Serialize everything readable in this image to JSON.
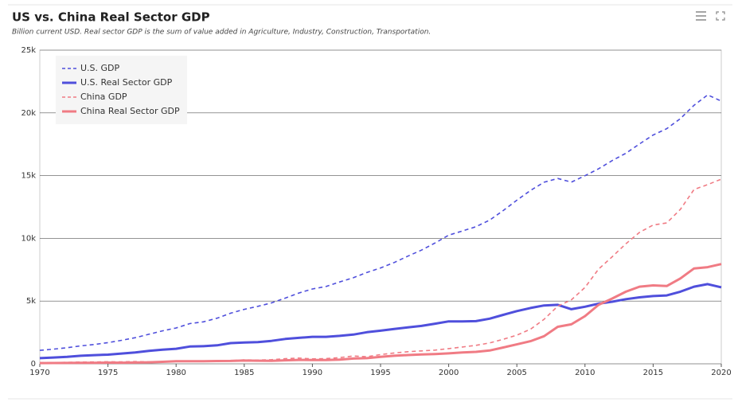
{
  "chart_data": {
    "type": "line",
    "title": "US vs. China Real Sector GDP",
    "subtitle": "Billion current USD. Real sector GDP is the sum of value added in Agriculture, Industry, Construction, Transportation.",
    "x": [
      1970,
      1971,
      1972,
      1973,
      1974,
      1975,
      1976,
      1977,
      1978,
      1979,
      1980,
      1981,
      1982,
      1983,
      1984,
      1985,
      1986,
      1987,
      1988,
      1989,
      1990,
      1991,
      1992,
      1993,
      1994,
      1995,
      1996,
      1997,
      1998,
      1999,
      2000,
      2001,
      2002,
      2003,
      2004,
      2005,
      2006,
      2007,
      2008,
      2009,
      2010,
      2011,
      2012,
      2013,
      2014,
      2015,
      2016,
      2017,
      2018,
      2019,
      2020
    ],
    "series": [
      {
        "name": "U.S. GDP",
        "color": "#4f4fdc",
        "dashed": true,
        "width": 1.6,
        "values": [
          1073,
          1165,
          1280,
          1425,
          1545,
          1685,
          1873,
          2082,
          2352,
          2627,
          2857,
          3207,
          3343,
          3634,
          4037,
          4339,
          4580,
          4855,
          5236,
          5641,
          5963,
          6158,
          6520,
          6858,
          7287,
          7639,
          8073,
          8577,
          9062,
          9631,
          10251,
          10582,
          10929,
          11456,
          12217,
          13039,
          13815,
          14474,
          14769,
          14478,
          14992,
          15543,
          16197,
          16785,
          17527,
          18238,
          18745,
          19543,
          20612,
          21433,
          20937
        ]
      },
      {
        "name": "U.S. Real Sector GDP",
        "color": "#4f4fdc",
        "dashed": false,
        "width": 3,
        "values": [
          450,
          500,
          560,
          640,
          690,
          730,
          820,
          910,
          1030,
          1130,
          1200,
          1380,
          1400,
          1470,
          1650,
          1700,
          1730,
          1830,
          1980,
          2070,
          2150,
          2150,
          2230,
          2330,
          2520,
          2640,
          2770,
          2900,
          3020,
          3200,
          3380,
          3380,
          3400,
          3600,
          3900,
          4200,
          4450,
          4650,
          4700,
          4350,
          4550,
          4800,
          4950,
          5150,
          5300,
          5400,
          5450,
          5750,
          6150,
          6350,
          6100
        ]
      },
      {
        "name": "China GDP",
        "color": "#f07b84",
        "dashed": true,
        "width": 1.6,
        "values": [
          92,
          100,
          114,
          139,
          144,
          163,
          154,
          175,
          150,
          178,
          191,
          196,
          205,
          231,
          260,
          309,
          301,
          327,
          408,
          457,
          395,
          415,
          495,
          623,
          564,
          734,
          864,
          962,
          1029,
          1094,
          1211,
          1339,
          1471,
          1660,
          1955,
          2286,
          2752,
          3550,
          4594,
          5102,
          6087,
          7552,
          8532,
          9570,
          10476,
          11062,
          11233,
          12310,
          13895,
          14280,
          14723
        ]
      },
      {
        "name": "China Real Sector GDP",
        "color": "#f07b84",
        "dashed": false,
        "width": 3,
        "values": [
          60,
          65,
          70,
          80,
          85,
          95,
          90,
          100,
          120,
          160,
          200,
          210,
          210,
          220,
          230,
          260,
          250,
          240,
          280,
          310,
          300,
          300,
          330,
          420,
          450,
          560,
          640,
          700,
          740,
          780,
          830,
          900,
          950,
          1060,
          1300,
          1550,
          1800,
          2200,
          2950,
          3150,
          3800,
          4700,
          5200,
          5750,
          6150,
          6250,
          6200,
          6800,
          7600,
          7700,
          7950
        ]
      }
    ],
    "xlim": [
      1970,
      2020
    ],
    "xticks": [
      1970,
      1975,
      1980,
      1985,
      1990,
      1995,
      2000,
      2005,
      2010,
      2015,
      2020
    ],
    "ylim": [
      0,
      25000
    ],
    "yticks": [
      0,
      {
        "value": 5000,
        "label": "5k"
      },
      {
        "value": 10000,
        "label": "10k"
      },
      {
        "value": 15000,
        "label": "15k"
      },
      {
        "value": 20000,
        "label": "20k"
      },
      {
        "value": 25000,
        "label": "25k"
      }
    ],
    "grid": true,
    "legend": "upper left"
  }
}
